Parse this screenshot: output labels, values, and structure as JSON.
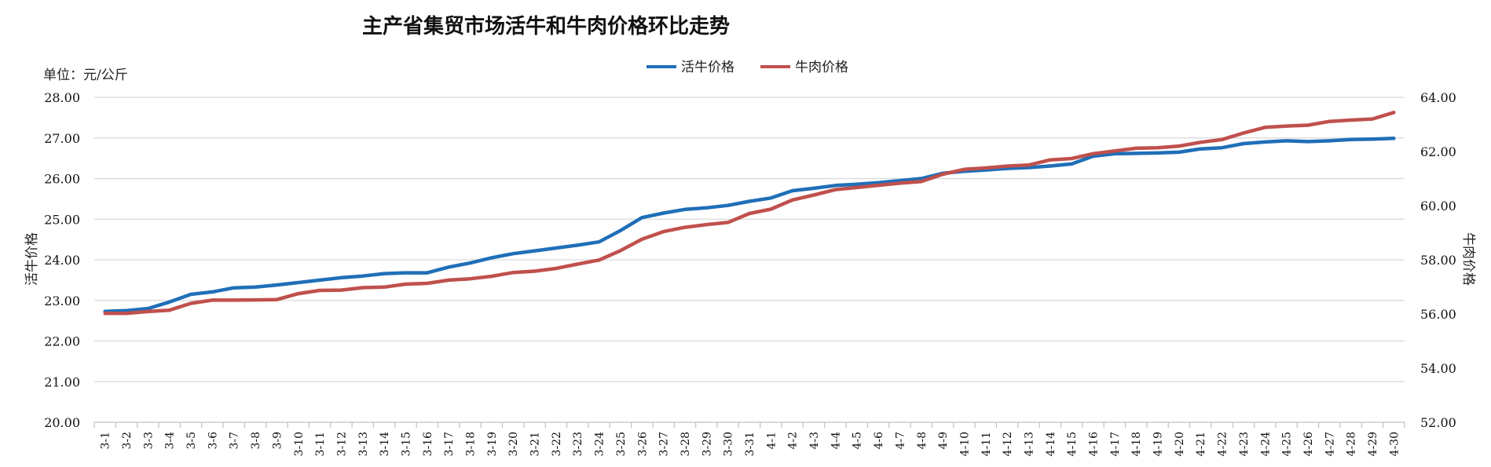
{
  "chart_data": {
    "type": "line",
    "title": "主产省集贸市场活牛和牛肉价格环比走势",
    "unit_label": "单位：元/公斤",
    "ylabel_left": "活牛价格",
    "ylabel_right": "牛肉价格",
    "legend_position": "top-center",
    "grid": true,
    "ylim_left": [
      20,
      28
    ],
    "ylim_right": [
      52,
      64
    ],
    "yticks_left": [
      "20.00",
      "21.00",
      "22.00",
      "23.00",
      "24.00",
      "25.00",
      "26.00",
      "27.00",
      "28.00"
    ],
    "yticks_right": [
      "52.00",
      "54.00",
      "56.00",
      "58.00",
      "60.00",
      "62.00",
      "64.00"
    ],
    "categories": [
      "3-1",
      "3-2",
      "3-3",
      "3-4",
      "3-5",
      "3-6",
      "3-7",
      "3-8",
      "3-9",
      "3-10",
      "3-11",
      "3-12",
      "3-13",
      "3-14",
      "3-15",
      "3-16",
      "3-17",
      "3-18",
      "3-19",
      "3-20",
      "3-21",
      "3-22",
      "3-23",
      "3-24",
      "3-25",
      "3-26",
      "3-27",
      "3-28",
      "3-29",
      "3-30",
      "3-31",
      "4-1",
      "4-2",
      "4-3",
      "4-4",
      "4-5",
      "4-6",
      "4-7",
      "4-8",
      "4-9",
      "4-10",
      "4-11",
      "4-12",
      "4-13",
      "4-14",
      "4-15",
      "4-16",
      "4-17",
      "4-18",
      "4-19",
      "4-20",
      "4-21",
      "4-22",
      "4-23",
      "4-24",
      "4-25",
      "4-26",
      "4-27",
      "4-28",
      "4-29",
      "4-30"
    ],
    "series": [
      {
        "name": "活牛价格",
        "axis": "left",
        "color": "#1F6FB8",
        "values": [
          22.73,
          22.75,
          22.8,
          22.96,
          23.15,
          23.21,
          23.31,
          23.33,
          23.38,
          23.44,
          23.5,
          23.56,
          23.6,
          23.66,
          23.68,
          23.68,
          23.82,
          23.92,
          24.05,
          24.15,
          24.22,
          24.29,
          24.36,
          24.44,
          24.72,
          25.04,
          25.15,
          25.24,
          25.28,
          25.34,
          25.44,
          25.52,
          25.7,
          25.76,
          25.83,
          25.86,
          25.9,
          25.95,
          26.0,
          26.13,
          26.18,
          26.21,
          26.25,
          26.27,
          26.31,
          26.36,
          26.55,
          26.61,
          26.62,
          26.63,
          26.65,
          26.73,
          26.76,
          26.86,
          26.9,
          26.93,
          26.91,
          26.93,
          26.96,
          26.97,
          26.99
        ]
      },
      {
        "name": "牛肉价格",
        "axis": "right",
        "color": "#C0504D",
        "values": [
          56.02,
          56.02,
          56.09,
          56.14,
          56.39,
          56.51,
          56.51,
          56.52,
          56.53,
          56.75,
          56.87,
          56.88,
          56.97,
          56.99,
          57.1,
          57.13,
          57.25,
          57.3,
          57.39,
          57.53,
          57.58,
          57.68,
          57.84,
          57.99,
          58.34,
          58.76,
          59.04,
          59.2,
          59.3,
          59.38,
          59.71,
          59.87,
          60.21,
          60.39,
          60.59,
          60.67,
          60.75,
          60.83,
          60.89,
          61.16,
          61.34,
          61.39,
          61.46,
          61.5,
          61.69,
          61.74,
          61.92,
          62.02,
          62.12,
          62.14,
          62.2,
          62.34,
          62.44,
          62.68,
          62.89,
          62.94,
          62.97,
          63.11,
          63.16,
          63.2,
          63.44
        ]
      }
    ]
  }
}
